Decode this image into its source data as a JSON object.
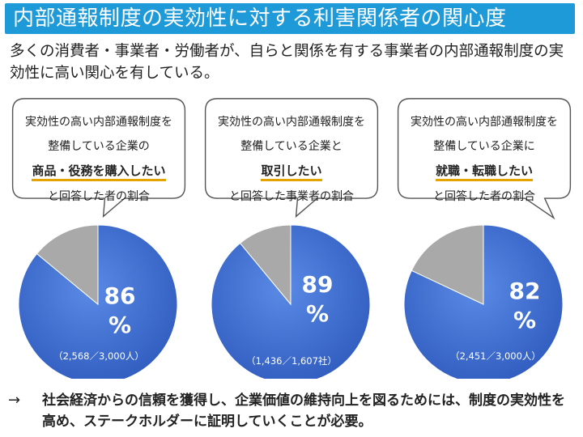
{
  "title": "内部通報制度の実効性に対する利害関係者の関心度",
  "lead": "多くの消費者・事業者・労働者が、自らと関係を有する事業者の内部通報制度の実効性に高い関心を有している。",
  "cards": [
    {
      "line1": "実効性の高い内部通報制度を",
      "line2": "整備している企業の",
      "highlight": "商品・役務を購入したい",
      "line4": "と回答した者の割合",
      "percent": "86",
      "percent_sign": "%",
      "count": "（2,568／3,000人）"
    },
    {
      "line1": "実効性の高い内部通報制度を",
      "line2": "整備している企業と",
      "highlight": "取引したい",
      "line4": "と回答した事業者の割合",
      "percent": "89",
      "percent_sign": "%",
      "count": "（1,436／1,607社）"
    },
    {
      "line1": "実効性の高い内部通報制度を",
      "line2": "整備している企業に",
      "highlight": "就職・転職したい",
      "line4": "と回答した者の割合",
      "percent": "82",
      "percent_sign": "%",
      "count": "（2,451／3,000人）"
    }
  ],
  "chart_data": [
    {
      "type": "pie",
      "values": [
        86,
        14
      ],
      "colors": [
        "#3a6ad0",
        "#a9a9a9"
      ]
    },
    {
      "type": "pie",
      "values": [
        89,
        11
      ],
      "colors": [
        "#3a6ad0",
        "#a9a9a9"
      ]
    },
    {
      "type": "pie",
      "values": [
        82,
        18
      ],
      "colors": [
        "#3a6ad0",
        "#a9a9a9"
      ]
    }
  ],
  "conclusion": {
    "arrow": "→",
    "text": "社会経済からの信頼を獲得し、企業価値の維持向上を図るためには、制度の実効性を高め、ステークホルダーに証明していくことが必要。"
  },
  "colors": {
    "title_bg": "#1f9ad8",
    "accent_underline": "#e3a400",
    "pie_main": "#3a6ad0",
    "pie_rest": "#a9a9a9"
  }
}
